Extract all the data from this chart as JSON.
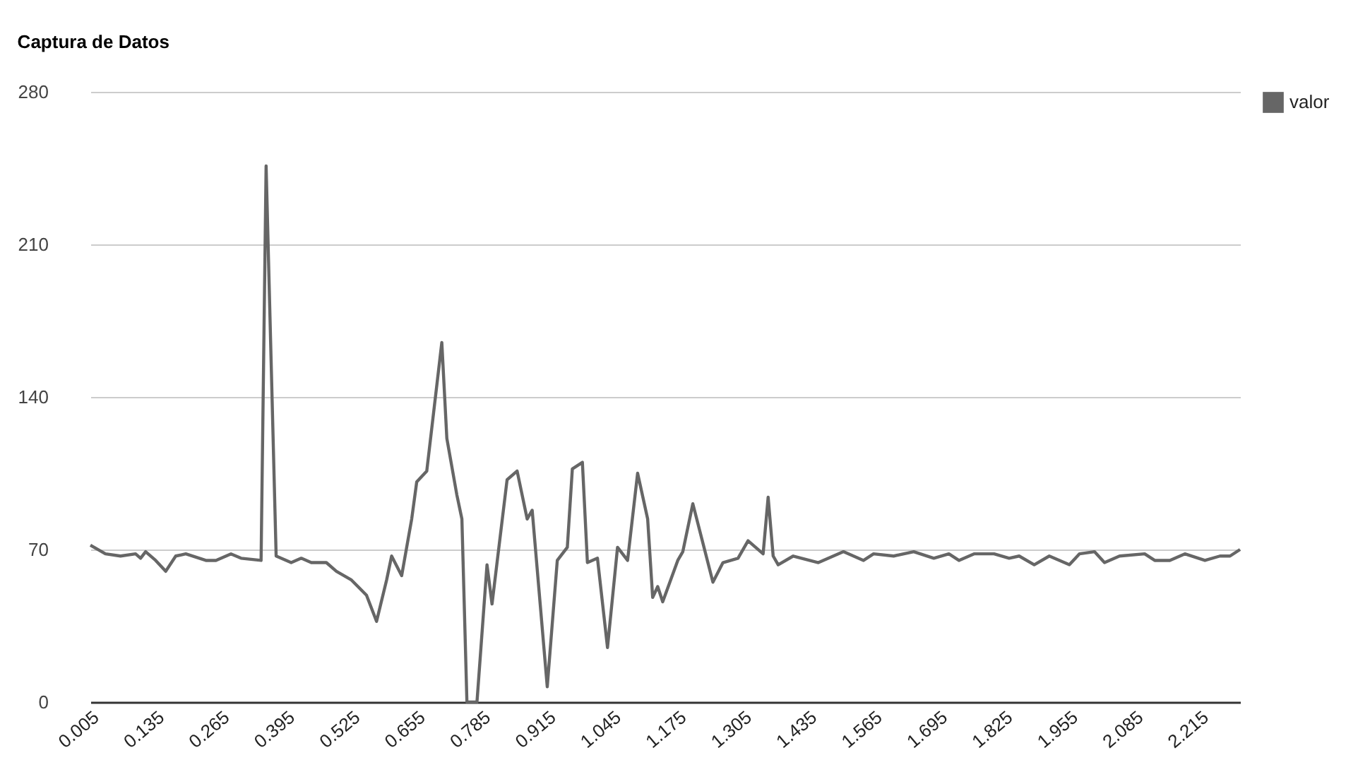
{
  "chart_data": {
    "type": "line",
    "title": "Captura de Datos",
    "x": [
      0.005,
      0.035,
      0.065,
      0.095,
      0.105,
      0.115,
      0.135,
      0.155,
      0.175,
      0.195,
      0.235,
      0.255,
      0.285,
      0.305,
      0.345,
      0.355,
      0.375,
      0.405,
      0.425,
      0.445,
      0.475,
      0.495,
      0.525,
      0.555,
      0.575,
      0.595,
      0.605,
      0.625,
      0.645,
      0.655,
      0.675,
      0.705,
      0.715,
      0.735,
      0.745,
      0.755,
      0.775,
      0.795,
      0.805,
      0.835,
      0.855,
      0.875,
      0.885,
      0.915,
      0.935,
      0.955,
      0.965,
      0.985,
      0.995,
      1.015,
      1.035,
      1.055,
      1.075,
      1.095,
      1.115,
      1.125,
      1.135,
      1.145,
      1.175,
      1.185,
      1.205,
      1.215,
      1.245,
      1.265,
      1.295,
      1.315,
      1.345,
      1.355,
      1.365,
      1.375,
      1.405,
      1.455,
      1.505,
      1.545,
      1.565,
      1.605,
      1.645,
      1.685,
      1.715,
      1.735,
      1.765,
      1.805,
      1.835,
      1.855,
      1.885,
      1.915,
      1.955,
      1.975,
      2.005,
      2.025,
      2.055,
      2.105,
      2.125,
      2.155,
      2.185,
      2.225,
      2.255,
      2.275,
      2.295
    ],
    "series": [
      {
        "name": "valor",
        "color": "#666666",
        "values": [
          72,
          68,
          67,
          68,
          66,
          69,
          65,
          60,
          67,
          68,
          65,
          65,
          68,
          66,
          65,
          246,
          67,
          64,
          66,
          64,
          64,
          60,
          56,
          49,
          37,
          56,
          67,
          58,
          84,
          101,
          106,
          165,
          121,
          95,
          84,
          0,
          0,
          63,
          45,
          102,
          106,
          84,
          88,
          7,
          65,
          71,
          107,
          110,
          64,
          66,
          25,
          71,
          65,
          105,
          84,
          48,
          53,
          46,
          65,
          69,
          91,
          82,
          55,
          64,
          66,
          74,
          68,
          94,
          67,
          63,
          67,
          64,
          69,
          65,
          68,
          67,
          69,
          66,
          68,
          65,
          68,
          68,
          66,
          67,
          63,
          67,
          63,
          68,
          69,
          64,
          67,
          68,
          65,
          65,
          68,
          65,
          67,
          67,
          70
        ]
      }
    ],
    "xlim": [
      0.005,
      2.295
    ],
    "xticks": [
      0.005,
      0.135,
      0.265,
      0.395,
      0.525,
      0.655,
      0.785,
      0.915,
      1.045,
      1.175,
      1.305,
      1.435,
      1.565,
      1.695,
      1.825,
      1.955,
      2.085,
      2.215
    ],
    "ylim": [
      0,
      280
    ],
    "yticks": [
      0,
      70,
      140,
      210,
      280
    ],
    "grid": "y",
    "legend": "top right"
  }
}
